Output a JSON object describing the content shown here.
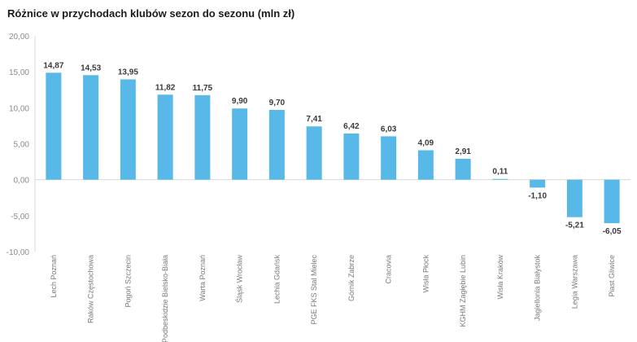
{
  "chart_data": {
    "type": "bar",
    "title": "Różnice w przychodach klubów sezon do sezonu (mln zł)",
    "categories": [
      "Lech Poznań",
      "Raków Częstochowa",
      "Pogoń Szczecin",
      "Podbeskidzie Bielsko-Biała",
      "Warta Poznań",
      "Śląsk Wrocław",
      "Lechia Gdańsk",
      "PGE FKS Stal Mielec",
      "Górnik Zabrze",
      "Cracovia",
      "Wisła Płock",
      "KGHM Zagłębie Lubin",
      "Wisła Kraków",
      "Jagiellonia Białystok",
      "Legia Warszawa",
      "Piast Gliwice"
    ],
    "values": [
      14.87,
      14.53,
      13.95,
      11.82,
      11.75,
      9.9,
      9.7,
      7.41,
      6.42,
      6.03,
      4.09,
      2.91,
      0.11,
      -1.1,
      -5.21,
      -6.05
    ],
    "data_labels": [
      "14,87",
      "14,53",
      "13,95",
      "11,82",
      "11,75",
      "9,90",
      "9,70",
      "7,41",
      "6,42",
      "6,03",
      "4,09",
      "2,91",
      "0,11",
      "-1,10",
      "-5,21",
      "-6,05"
    ],
    "yticks": [
      "20,00",
      "15,00",
      "10,00",
      "5,00",
      "0,00",
      "-5,00",
      "-10,00"
    ],
    "ylim": [
      -10,
      20
    ],
    "bar_color": "#58b9e9",
    "grid": false,
    "legend": "none"
  }
}
